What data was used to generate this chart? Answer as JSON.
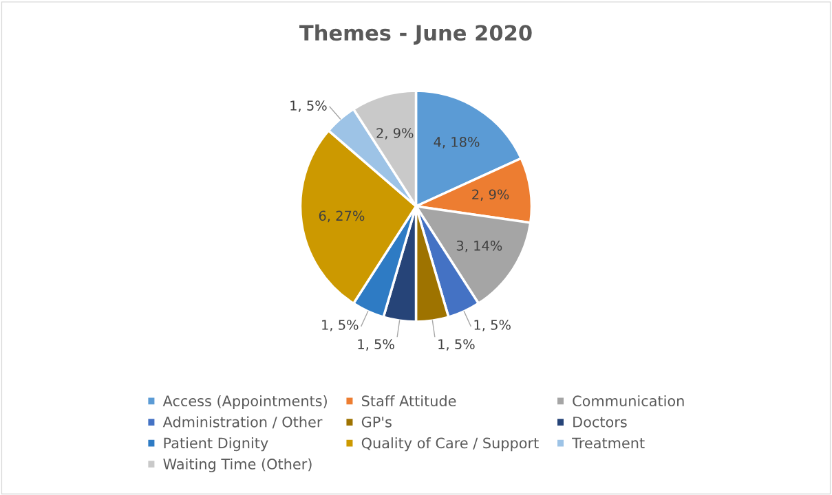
{
  "chart_data": {
    "type": "pie",
    "title": "Themes - June 2020",
    "categories": [
      "Access (Appointments)",
      "Staff Attitude",
      "Communication",
      "Administration / Other",
      "GP's",
      "Doctors",
      "Patient Dignity",
      "Quality of Care / Support",
      "Treatment",
      "Waiting Time (Other)"
    ],
    "values": [
      4,
      2,
      3,
      1,
      1,
      1,
      1,
      6,
      1,
      2
    ],
    "value_labels": [
      "4, 18%",
      "2, 9%",
      "3, 14%",
      "1, 5%",
      "1, 5%",
      "1, 5%",
      "1, 5%",
      "6, 27%",
      "1, 5%",
      "2, 9%"
    ],
    "colors": [
      "#5b9bd5",
      "#ed7d31",
      "#a5a5a5",
      "#4472c4",
      "#9e7300",
      "#264478",
      "#2e7bc4",
      "#cc9900",
      "#9dc3e6",
      "#c9c9c9"
    ],
    "legend": "bottom"
  }
}
